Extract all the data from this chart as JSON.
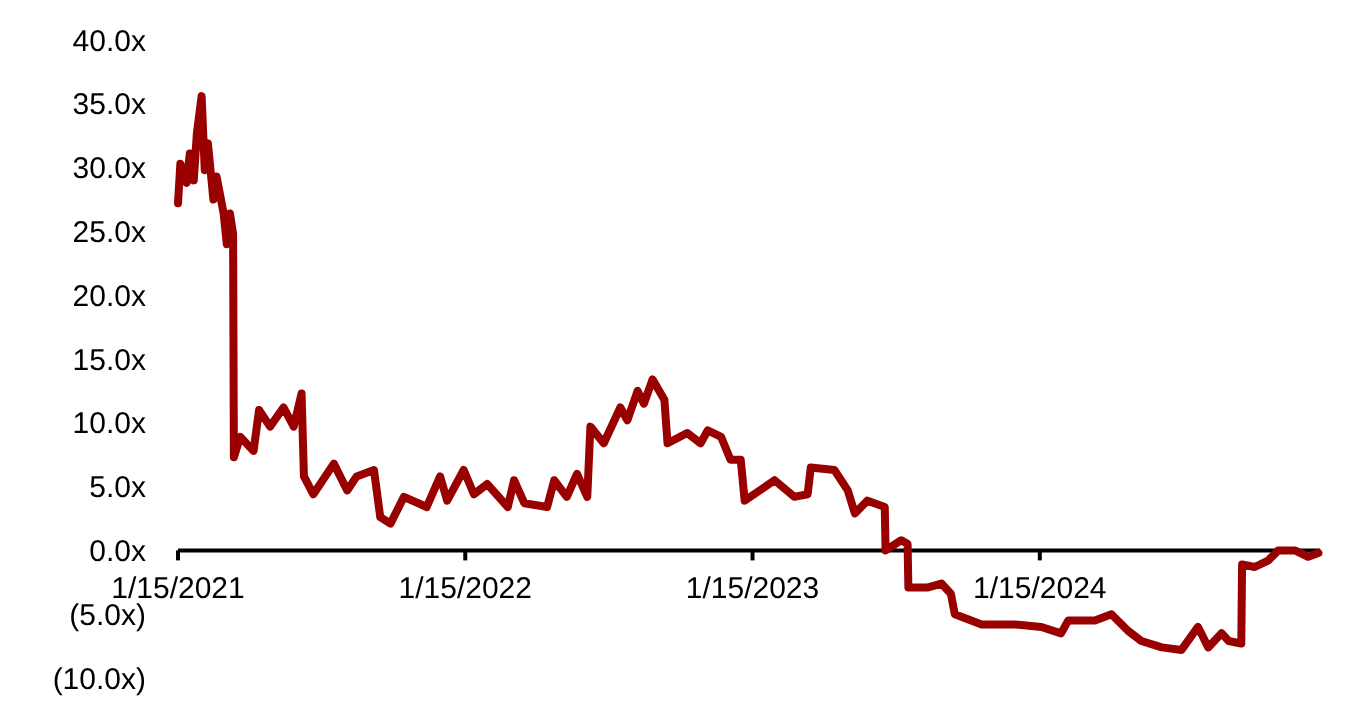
{
  "chart_data": {
    "type": "line",
    "x": [
      "2021-01-15",
      "2021-01-18",
      "2021-01-26",
      "2021-01-30",
      "2021-02-04",
      "2021-02-08",
      "2021-02-14",
      "2021-02-18",
      "2021-02-22",
      "2021-03-01",
      "2021-03-05",
      "2021-03-14",
      "2021-03-18",
      "2021-03-22",
      "2021-03-26",
      "2021-03-27",
      "2021-04-04",
      "2021-04-21",
      "2021-04-28",
      "2021-05-12",
      "2021-05-29",
      "2021-06-11",
      "2021-06-21",
      "2021-06-24",
      "2021-07-06",
      "2021-08-01",
      "2021-08-18",
      "2021-08-30",
      "2021-09-21",
      "2021-09-29",
      "2021-10-12",
      "2021-10-29",
      "2021-11-27",
      "2021-12-14",
      "2021-12-23",
      "2022-01-13",
      "2022-01-26",
      "2022-02-12",
      "2022-03-10",
      "2022-03-18",
      "2022-03-31",
      "2022-04-29",
      "2022-05-08",
      "2022-05-24",
      "2022-06-06",
      "2022-06-19",
      "2022-06-23",
      "2022-07-10",
      "2022-07-31",
      "2022-08-09",
      "2022-08-22",
      "2022-08-30",
      "2022-09-10",
      "2022-09-25",
      "2022-09-29",
      "2022-10-24",
      "2022-11-10",
      "2022-11-19",
      "2022-12-06",
      "2022-12-18",
      "2022-12-31",
      "2023-01-05",
      "2023-01-17",
      "2023-02-12",
      "2023-03-09",
      "2023-03-26",
      "2023-03-30",
      "2023-04-29",
      "2023-05-16",
      "2023-05-25",
      "2023-06-10",
      "2023-07-02",
      "2023-07-03",
      "2023-07-23",
      "2023-07-31",
      "2023-08-01",
      "2023-08-26",
      "2023-09-12",
      "2023-09-24",
      "2023-09-29",
      "2023-11-02",
      "2023-12-14",
      "2024-01-17",
      "2024-02-11",
      "2024-02-20",
      "2024-03-25",
      "2024-04-15",
      "2024-05-06",
      "2024-05-23",
      "2024-06-18",
      "2024-07-13",
      "2024-08-03",
      "2024-08-16",
      "2024-09-02",
      "2024-09-11",
      "2024-09-27",
      "2024-09-28",
      "2024-10-14",
      "2024-10-31",
      "2024-11-13",
      "2024-12-04",
      "2024-12-21",
      "2025-01-03"
    ],
    "series": [
      {
        "color": "#990000",
        "values": [
          27.2,
          30.3,
          28.8,
          31.1,
          29,
          32.7,
          35.6,
          29.8,
          31.9,
          27.5,
          29.3,
          26.4,
          24,
          26.4,
          24.8,
          7.3,
          8.9,
          7.8,
          11,
          9.7,
          11.2,
          9.7,
          12.3,
          5.8,
          4.4,
          6.8,
          4.7,
          5.8,
          6.3,
          2.6,
          2.1,
          4.2,
          3.4,
          5.8,
          3.9,
          6.3,
          4.4,
          5.2,
          3.4,
          5.5,
          3.7,
          3.4,
          5.5,
          4.2,
          6,
          4.2,
          9.7,
          8.4,
          11.2,
          10.2,
          12.5,
          11.5,
          13.4,
          11.8,
          8.4,
          9.2,
          8.4,
          9.4,
          8.9,
          7.1,
          7.1,
          3.9,
          4.4,
          5.5,
          4.2,
          4.4,
          6.5,
          6.3,
          4.7,
          2.9,
          3.9,
          3.4,
          0,
          0.8,
          0.5,
          -2.9,
          -2.9,
          -2.6,
          -3.4,
          -5,
          -5.8,
          -5.8,
          -6,
          -6.5,
          -5.5,
          -5.5,
          -5,
          -6.3,
          -7.1,
          -7.6,
          -7.8,
          -6,
          -7.6,
          -6.5,
          -7.1,
          -7.3,
          -1.1,
          -1.3,
          -0.8,
          0,
          0,
          -0.5,
          -0.2
        ]
      }
    ],
    "xlim": [
      "2021-01-15",
      "2025-01-05"
    ],
    "xticks": [
      {
        "value": "2021-01-15",
        "label": "1/15/2021"
      },
      {
        "value": "2022-01-15",
        "label": "1/15/2022"
      },
      {
        "value": "2023-01-15",
        "label": "1/15/2023"
      },
      {
        "value": "2024-01-15",
        "label": "1/15/2024"
      }
    ],
    "ylim": [
      -10,
      40
    ],
    "yticks": [
      {
        "value": -10,
        "label": "(10.0x)"
      },
      {
        "value": -5,
        "label": "(5.0x)"
      },
      {
        "value": 0,
        "label": "0.0x"
      },
      {
        "value": 5,
        "label": "5.0x"
      },
      {
        "value": 10,
        "label": "10.0x"
      },
      {
        "value": 15,
        "label": "15.0x"
      },
      {
        "value": 20,
        "label": "20.0x"
      },
      {
        "value": 25,
        "label": "25.0x"
      },
      {
        "value": 30,
        "label": "30.0x"
      },
      {
        "value": 35,
        "label": "35.0x"
      },
      {
        "value": 40,
        "label": "40.0x"
      }
    ],
    "grid": false,
    "marker": "none",
    "line_style": "solid"
  }
}
